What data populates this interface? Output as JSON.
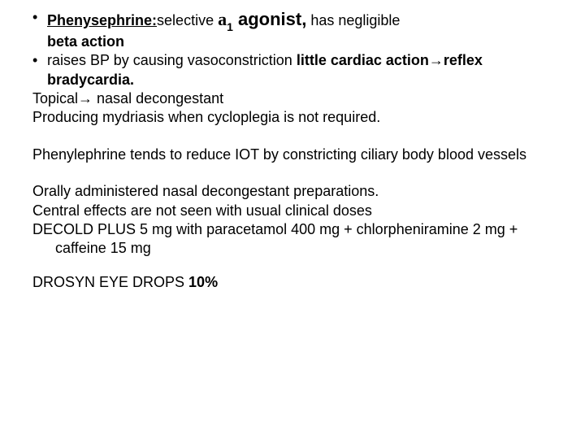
{
  "colors": {
    "background": "#ffffff",
    "text": "#000000"
  },
  "typography": {
    "base_font": "Arial",
    "base_size_pt": 14,
    "line_height": 1.3,
    "emphasis_size_pt": 17
  },
  "bullet1": {
    "drug": "Phenysephrine:",
    "selective": "selective",
    "alpha": "a",
    "sub": "1",
    "agonist": " agonist,",
    "tail": " has negligible ",
    "line2": "beta action"
  },
  "bullet2": {
    "lead": "raises BP by causing vasoconstriction  ",
    "bold1": "little cardiac action",
    "arrow": "→",
    "bold2": "reflex bradycardia."
  },
  "line_topical": {
    "a": "Topical",
    "arrow": "→",
    "b": " nasal decongestant"
  },
  "line_mydriasis": "Producing mydriasis when cycloplegia is not required.",
  "para_iot": "Phenylephrine tends to reduce IOT by constricting ciliary body blood vessels",
  "line_oral": "Orally  administered nasal decongestant preparations.",
  "line_central": "Central effects are not seen with usual clinical doses",
  "line_decold": " DECOLD PLUS 5 mg with paracetamol 400 mg + chlorpheniramine 2 mg + caffeine 15 mg",
  "line_drosyn": {
    "a": "DROSYN EYE DROPS ",
    "b": "10%"
  }
}
